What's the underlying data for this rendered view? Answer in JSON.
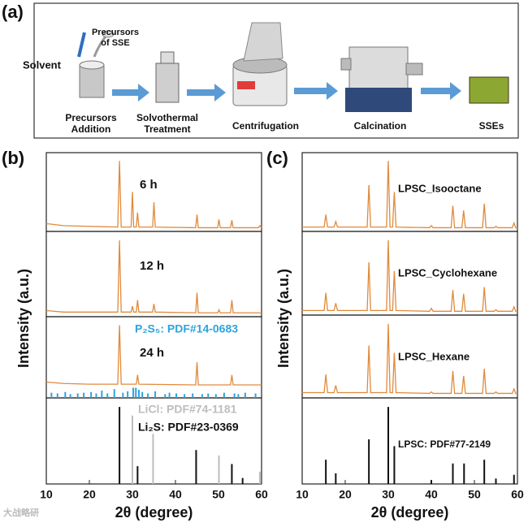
{
  "panels": {
    "a": "(a)",
    "b": "(b)",
    "c": "(c)"
  },
  "process": {
    "annotations": {
      "solvent": "Solvent",
      "precursors": [
        "Precursors",
        "of SSE"
      ]
    },
    "steps": [
      [
        "Precursors",
        "Addition"
      ],
      [
        "Solvothermal",
        "Treatment"
      ],
      [
        "Centrifugation"
      ],
      [
        "Calcination"
      ],
      [
        "SSEs"
      ]
    ]
  },
  "watermark": "大战略研",
  "chart_data": [
    {
      "type": "line",
      "xlabel": "2θ (degree)",
      "ylabel": "Intensity (a.u.)",
      "xlim": [
        10,
        60
      ],
      "xticks": [
        10,
        20,
        30,
        40,
        50,
        60
      ],
      "rows": 4,
      "series": [
        {
          "name": "6 h",
          "style": "line",
          "row": 0,
          "color": "#e08a3c",
          "x": [
            10,
            14,
            20,
            26.6,
            27,
            27.4,
            29.7,
            30,
            30.3,
            30.9,
            31.2,
            31.5,
            34.7,
            35,
            35.3,
            44.7,
            45,
            45.3,
            49.8,
            50.1,
            50.4,
            52.8,
            53.1,
            53.4,
            59.3,
            59.6,
            60
          ],
          "values": [
            9,
            6,
            5,
            4,
            100,
            4,
            4,
            55,
            4,
            4,
            25,
            4,
            4,
            40,
            4,
            3,
            22,
            3,
            3,
            15,
            3,
            3,
            14,
            3,
            3,
            6,
            3
          ]
        },
        {
          "name": "12 h",
          "style": "line",
          "row": 1,
          "color": "#e08a3c",
          "x": [
            10,
            14,
            20,
            26.6,
            27,
            27.4,
            29.7,
            30,
            30.3,
            30.9,
            31.2,
            31.5,
            34.7,
            35,
            35.3,
            44.7,
            45,
            45.3,
            49.8,
            50.1,
            50.4,
            52.8,
            53.1,
            53.4,
            60
          ],
          "values": [
            6,
            4,
            4,
            4,
            100,
            4,
            4,
            12,
            4,
            4,
            20,
            4,
            4,
            15,
            4,
            3,
            30,
            3,
            3,
            7,
            3,
            3,
            20,
            3,
            3
          ]
        },
        {
          "name": "24 h",
          "style": "line",
          "row": 2,
          "color": "#e08a3c",
          "x": [
            10,
            14,
            20,
            26.6,
            27,
            27.4,
            30.9,
            31.2,
            31.5,
            44.7,
            45,
            45.3,
            52.8,
            53.1,
            53.4,
            60
          ],
          "values": [
            20,
            18,
            17,
            17,
            100,
            17,
            17,
            30,
            17,
            16,
            48,
            16,
            16,
            30,
            16,
            16
          ]
        },
        {
          "name": "P₂S₅: PDF#14-0683",
          "style": "stick",
          "row": 2,
          "color": "#2ea3dd",
          "x": [
            11.2,
            12.6,
            14.4,
            15.6,
            17.3,
            18.7,
            20.4,
            21.6,
            22.9,
            24.2,
            25.8,
            27.8,
            28.9,
            30.2,
            30.8,
            31.5,
            32.3,
            33.6,
            35.3,
            37.6,
            38.6,
            40.2,
            42.1,
            44.0,
            46.2,
            47.6,
            49.4,
            51.3,
            53.7,
            54.6,
            56.2,
            58.6
          ],
          "values": [
            5,
            4,
            6,
            3,
            4,
            5,
            6,
            4,
            8,
            4,
            10,
            5,
            7,
            12,
            12,
            9,
            6,
            4,
            7,
            3,
            5,
            4,
            3,
            4,
            3,
            4,
            3,
            5,
            4,
            3,
            5,
            4
          ]
        },
        {
          "name": "LiCl: PDF#74-1181",
          "style": "stick",
          "row": 3,
          "color": "#bdbdbd",
          "x": [
            30.0,
            34.8,
            50.1,
            59.6
          ],
          "values": [
            62,
            45,
            25,
            10
          ]
        },
        {
          "name": "Li₂S: PDF#23-0369",
          "style": "stick",
          "row": 3,
          "color": "#111111",
          "x": [
            27.0,
            31.2,
            44.8,
            53.1,
            55.6
          ],
          "values": [
            70,
            15,
            30,
            17,
            4
          ]
        }
      ]
    },
    {
      "type": "line",
      "xlabel": "2θ (degree)",
      "ylabel": "Intensity (a.u.)",
      "xlim": [
        10,
        60
      ],
      "xticks": [
        10,
        20,
        30,
        40,
        50,
        60
      ],
      "rows": 4,
      "series": [
        {
          "name": "LPSC_Isooctane",
          "style": "line",
          "row": 0,
          "color": "#e08a3c",
          "x": [
            10,
            15.1,
            15.5,
            15.9,
            17.4,
            17.8,
            18.2,
            25.1,
            25.5,
            25.9,
            29.6,
            30.0,
            30.4,
            31.0,
            31.4,
            31.8,
            39.6,
            40.0,
            40.4,
            44.6,
            45.0,
            45.4,
            47.1,
            47.5,
            47.9,
            51.9,
            52.3,
            52.7,
            54.6,
            55.0,
            55.4,
            58.8,
            59.2,
            59.6,
            60
          ],
          "values": [
            4,
            4,
            22,
            4,
            4,
            12,
            4,
            4,
            65,
            4,
            4,
            100,
            4,
            4,
            55,
            4,
            3,
            6,
            3,
            3,
            35,
            3,
            3,
            28,
            3,
            3,
            38,
            3,
            3,
            5,
            3,
            3,
            10,
            3,
            3
          ]
        },
        {
          "name": "LPSC_Cyclohexane",
          "style": "line",
          "row": 1,
          "color": "#e08a3c",
          "x": [
            10,
            15.1,
            15.5,
            15.9,
            17.4,
            17.8,
            18.2,
            25.1,
            25.5,
            25.9,
            29.6,
            30.0,
            30.4,
            31.0,
            31.4,
            31.8,
            39.6,
            40.0,
            40.4,
            44.6,
            45.0,
            45.4,
            47.1,
            47.5,
            47.9,
            51.9,
            52.3,
            52.7,
            54.6,
            55.0,
            55.4,
            58.8,
            59.2,
            59.6,
            60
          ],
          "values": [
            4,
            4,
            28,
            4,
            4,
            14,
            4,
            4,
            70,
            4,
            4,
            100,
            4,
            4,
            58,
            4,
            3,
            7,
            3,
            3,
            32,
            3,
            3,
            27,
            3,
            3,
            36,
            3,
            3,
            5,
            3,
            3,
            9,
            3,
            3
          ]
        },
        {
          "name": "LPSC_Hexane",
          "style": "line",
          "row": 2,
          "color": "#e08a3c",
          "x": [
            10,
            15.1,
            15.5,
            15.9,
            17.4,
            17.8,
            18.2,
            25.1,
            25.5,
            25.9,
            29.6,
            30.0,
            30.4,
            31.0,
            31.4,
            31.8,
            39.6,
            40.0,
            40.4,
            44.6,
            45.0,
            45.4,
            47.1,
            47.5,
            47.9,
            51.9,
            52.3,
            52.7,
            54.6,
            55.0,
            55.4,
            58.8,
            59.2,
            59.6,
            60
          ],
          "values": [
            5,
            5,
            30,
            5,
            5,
            15,
            5,
            5,
            70,
            5,
            5,
            100,
            5,
            5,
            60,
            5,
            4,
            6,
            4,
            4,
            35,
            4,
            4,
            28,
            4,
            4,
            38,
            4,
            4,
            6,
            4,
            4,
            10,
            4,
            4
          ]
        },
        {
          "name": "LPSC: PDF#77-2149",
          "style": "stick",
          "row": 3,
          "color": "#111111",
          "x": [
            15.5,
            17.8,
            25.5,
            30.0,
            31.4,
            40.0,
            45.0,
            47.6,
            52.3,
            55.0,
            59.2
          ],
          "values": [
            30,
            12,
            57,
            100,
            48,
            3,
            25,
            25,
            30,
            5,
            10
          ]
        }
      ]
    }
  ]
}
